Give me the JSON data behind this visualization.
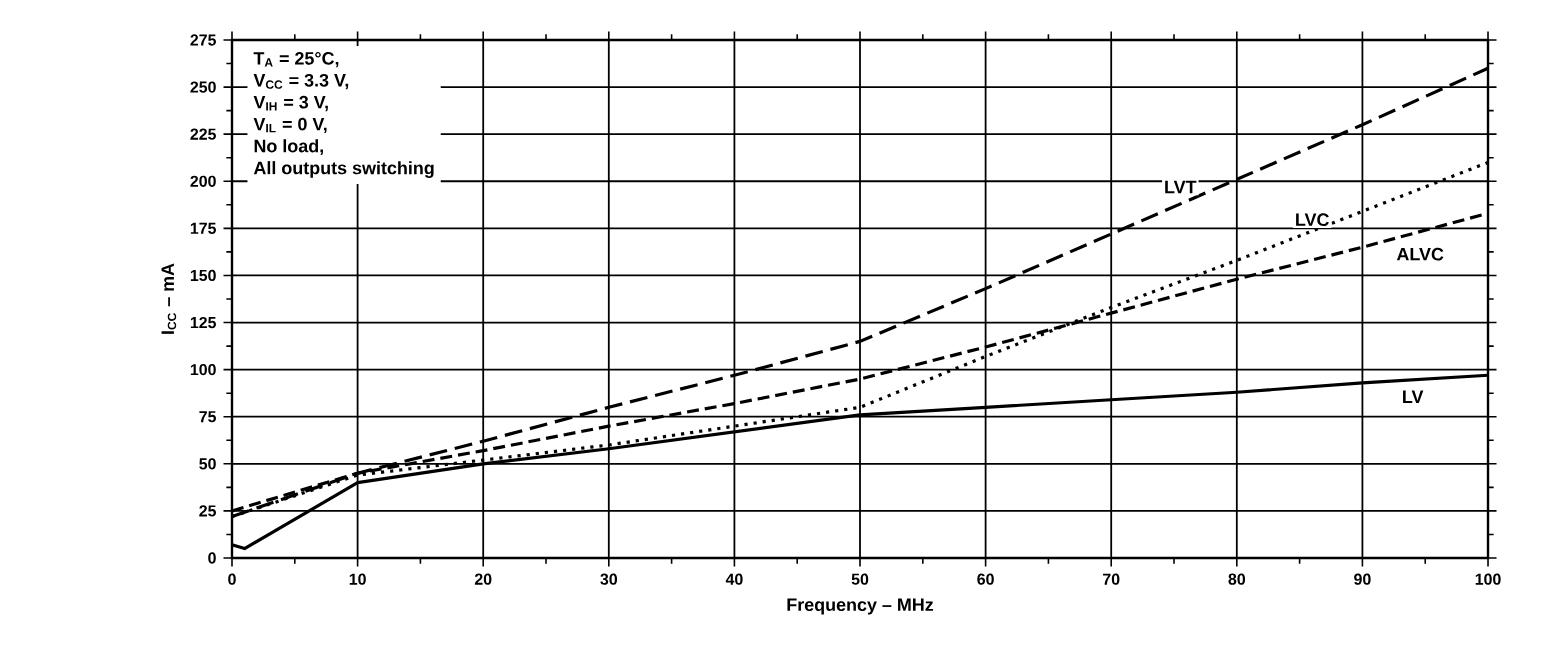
{
  "chart_data": {
    "type": "line",
    "xlabel": "Frequency – MHz",
    "ylabel": "I$_{CC}$ – mA",
    "x": [
      0,
      10,
      20,
      30,
      40,
      50,
      60,
      70,
      80,
      90,
      100
    ],
    "xlim": [
      0,
      100
    ],
    "ylim": [
      0,
      275
    ],
    "xticks": [
      0,
      10,
      20,
      30,
      40,
      50,
      60,
      70,
      80,
      90,
      100
    ],
    "yticks": [
      0,
      25,
      50,
      75,
      100,
      125,
      150,
      175,
      200,
      225,
      250,
      275
    ],
    "grid": true,
    "legend": false,
    "marker": "none",
    "series": [
      {
        "name": "LVT",
        "color": "#000000",
        "line_style": "dashed",
        "values": [
          22,
          45,
          62,
          80,
          97,
          115,
          143,
          172,
          201,
          230,
          260
        ]
      },
      {
        "name": "LVC",
        "color": "#000000",
        "line_style": "dotted",
        "values": [
          22,
          44,
          52,
          60,
          70,
          80,
          107,
          133,
          158,
          184,
          210
        ]
      },
      {
        "name": "ALVC",
        "color": "#000000",
        "line_style": "dashed",
        "values": [
          25,
          45,
          57,
          70,
          82,
          95,
          112,
          130,
          148,
          165,
          183
        ]
      },
      {
        "name": "LV",
        "color": "#000000",
        "line_style": "solid",
        "x": [
          0,
          1,
          10,
          20,
          30,
          40,
          50,
          60,
          70,
          80,
          90,
          100
        ],
        "values": [
          7,
          5,
          40,
          50,
          58,
          67,
          76,
          80,
          84,
          88,
          93,
          97
        ]
      }
    ],
    "annotations": [
      "T$_{A}$ = 25°C,",
      "V$_{CC}$ = 3.3 V,",
      "V$_{IH}$ = 3 V,",
      "V$_{IL}$ = 0 V,",
      "No load,",
      "All outputs switching"
    ]
  }
}
